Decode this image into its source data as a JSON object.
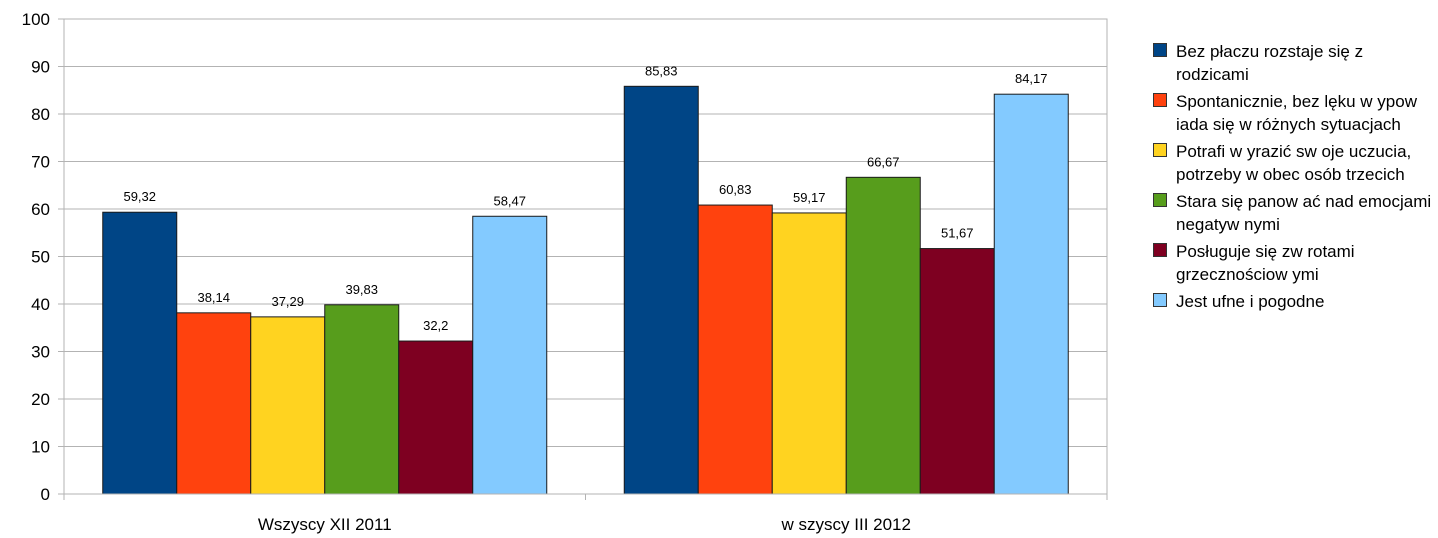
{
  "chart_data": {
    "type": "bar",
    "categories": [
      "Wszyscy  XII 2011",
      "w szyscy III 2012"
    ],
    "series": [
      {
        "name": "Bez płaczu rozstaje się z rodzicami",
        "color": "#004586",
        "values": [
          59.32,
          85.83
        ],
        "labels": [
          "59,32",
          "85,83"
        ]
      },
      {
        "name": "Spontanicznie, bez lęku w ypow iada się w  różnych sytuacjach",
        "color": "#ff420e",
        "values": [
          38.14,
          60.83
        ],
        "labels": [
          "38,14",
          "60,83"
        ]
      },
      {
        "name": "Potrafi w yrazić sw oje uczucia, potrzeby w obec osób trzecich",
        "color": "#ffd320",
        "values": [
          37.29,
          59.17
        ],
        "labels": [
          "37,29",
          "59,17"
        ]
      },
      {
        "name": "Stara się panow ać nad emocjami negatyw nymi",
        "color": "#579d1c",
        "values": [
          39.83,
          66.67
        ],
        "labels": [
          "39,83",
          "66,67"
        ]
      },
      {
        "name": "Posługuje się zw rotami grzecznościow ymi",
        "color": "#7e0021",
        "values": [
          32.2,
          51.67
        ],
        "labels": [
          "32,2",
          "51,67"
        ]
      },
      {
        "name": "Jest ufne i pogodne",
        "color": "#83caff",
        "values": [
          58.47,
          84.17
        ],
        "labels": [
          "58,47",
          "84,17"
        ]
      }
    ],
    "yticks": [
      "0",
      "10",
      "20",
      "30",
      "40",
      "50",
      "60",
      "70",
      "80",
      "90",
      "100"
    ],
    "ylim": [
      0,
      100
    ],
    "grid": true,
    "legend": "right"
  }
}
